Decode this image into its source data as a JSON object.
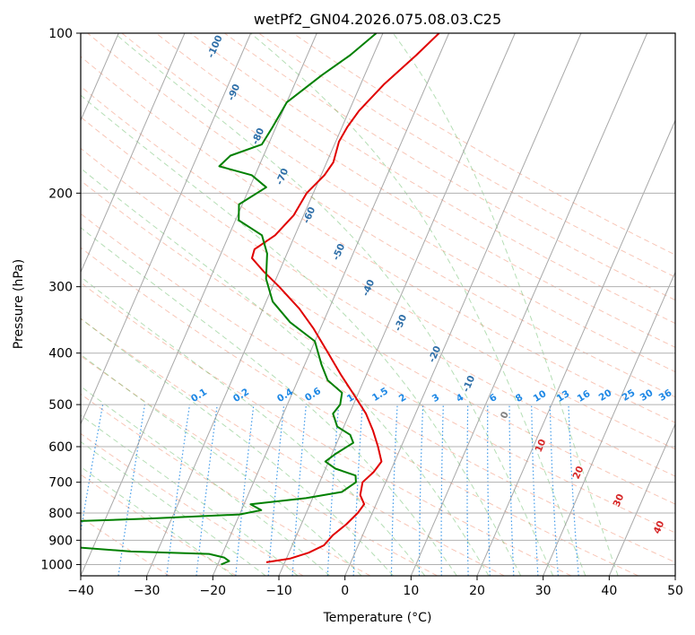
{
  "chart_data": {
    "type": "line",
    "title": "wetPf2_GN04.2026.075.08.03.C25",
    "xlabel": "Temperature (°C)",
    "ylabel": "Pressure (hPa)",
    "xlim": [
      -40,
      50
    ],
    "ylim": [
      1050,
      100
    ],
    "y_scale": "log",
    "grid": true,
    "x_ticks": [
      "−40",
      "−30",
      "−20",
      "−10",
      "0",
      "10",
      "20",
      "30",
      "40",
      "50"
    ],
    "x_tick_values": [
      -40,
      -30,
      -20,
      -10,
      0,
      10,
      20,
      30,
      40,
      50
    ],
    "y_ticks": [
      "100",
      "200",
      "300",
      "400",
      "500",
      "600",
      "700",
      "800",
      "900",
      "1000"
    ],
    "y_tick_values": [
      100,
      200,
      300,
      400,
      500,
      600,
      700,
      800,
      900,
      1000
    ],
    "skew_per_decade_degC": 35,
    "isotherm_labels": [
      "-100",
      "-90",
      "-80",
      "-70",
      "-60",
      "-50",
      "-40",
      "-30",
      "-20",
      "-10",
      "0",
      "10",
      "20",
      "30",
      "40"
    ],
    "isotherm_label_values": [
      -100,
      -90,
      -80,
      -70,
      -60,
      -50,
      -40,
      -30,
      -20,
      -10,
      0,
      10,
      20,
      30,
      40
    ],
    "mixing_ratio_labels": [
      "0.1",
      "0.2",
      "0.4",
      "0.6",
      "1",
      "1.5",
      "2",
      "3",
      "4",
      "6",
      "8",
      "10",
      "13",
      "16",
      "20",
      "25",
      "30",
      "36"
    ],
    "mixing_ratio_values": [
      0.1,
      0.2,
      0.4,
      0.6,
      1,
      1.5,
      2,
      3,
      4,
      6,
      8,
      10,
      13,
      16,
      20,
      25,
      30,
      36
    ],
    "series": [
      {
        "color": "#e00000",
        "points": [
          {
            "p": 990,
            "t": -12.8
          },
          {
            "p": 975,
            "t": -9.5
          },
          {
            "p": 950,
            "t": -7.0
          },
          {
            "p": 920,
            "t": -5.2
          },
          {
            "p": 880,
            "t": -4.5
          },
          {
            "p": 840,
            "t": -3.2
          },
          {
            "p": 800,
            "t": -2.2
          },
          {
            "p": 770,
            "t": -1.8
          },
          {
            "p": 740,
            "t": -3.0
          },
          {
            "p": 700,
            "t": -3.5
          },
          {
            "p": 670,
            "t": -2.5
          },
          {
            "p": 640,
            "t": -2.0
          },
          {
            "p": 600,
            "t": -3.5
          },
          {
            "p": 560,
            "t": -5.3
          },
          {
            "p": 520,
            "t": -7.5
          },
          {
            "p": 480,
            "t": -10.5
          },
          {
            "p": 440,
            "t": -13.8
          },
          {
            "p": 400,
            "t": -17.2
          },
          {
            "p": 360,
            "t": -21.0
          },
          {
            "p": 330,
            "t": -24.5
          },
          {
            "p": 300,
            "t": -29.0
          },
          {
            "p": 280,
            "t": -32.5
          },
          {
            "p": 265,
            "t": -35.0
          },
          {
            "p": 255,
            "t": -35.2
          },
          {
            "p": 240,
            "t": -33.0
          },
          {
            "p": 220,
            "t": -31.5
          },
          {
            "p": 200,
            "t": -31.0
          },
          {
            "p": 185,
            "t": -29.5
          },
          {
            "p": 175,
            "t": -29.0
          },
          {
            "p": 160,
            "t": -29.5
          },
          {
            "p": 150,
            "t": -29.2
          },
          {
            "p": 140,
            "t": -28.5
          },
          {
            "p": 125,
            "t": -26.5
          },
          {
            "p": 110,
            "t": -23.5
          },
          {
            "p": 100,
            "t": -21.5
          }
        ]
      },
      {
        "color": "#008000",
        "points": [
          {
            "p": 1000,
            "t": -19.5
          },
          {
            "p": 985,
            "t": -18.5
          },
          {
            "p": 970,
            "t": -19.5
          },
          {
            "p": 955,
            "t": -22.0
          },
          {
            "p": 945,
            "t": -34.0
          },
          {
            "p": 925,
            "t": -44.0
          },
          {
            "p": 900,
            "t": -55.0
          },
          {
            "p": 890,
            "t": -60.0
          },
          {
            "p": 870,
            "t": -62.0
          },
          {
            "p": 840,
            "t": -58.0
          },
          {
            "p": 820,
            "t": -34.0
          },
          {
            "p": 805,
            "t": -20.0
          },
          {
            "p": 790,
            "t": -17.0
          },
          {
            "p": 770,
            "t": -19.0
          },
          {
            "p": 750,
            "t": -11.0
          },
          {
            "p": 730,
            "t": -6.0
          },
          {
            "p": 700,
            "t": -4.5
          },
          {
            "p": 680,
            "t": -5.0
          },
          {
            "p": 660,
            "t": -8.5
          },
          {
            "p": 640,
            "t": -10.5
          },
          {
            "p": 620,
            "t": -9.5
          },
          {
            "p": 590,
            "t": -7.5
          },
          {
            "p": 570,
            "t": -8.5
          },
          {
            "p": 550,
            "t": -11.0
          },
          {
            "p": 520,
            "t": -12.5
          },
          {
            "p": 500,
            "t": -12.0
          },
          {
            "p": 475,
            "t": -12.5
          },
          {
            "p": 450,
            "t": -15.5
          },
          {
            "p": 420,
            "t": -17.5
          },
          {
            "p": 380,
            "t": -20.0
          },
          {
            "p": 350,
            "t": -25.0
          },
          {
            "p": 320,
            "t": -29.0
          },
          {
            "p": 290,
            "t": -31.5
          },
          {
            "p": 260,
            "t": -33.0
          },
          {
            "p": 240,
            "t": -35.0
          },
          {
            "p": 225,
            "t": -39.5
          },
          {
            "p": 210,
            "t": -40.5
          },
          {
            "p": 195,
            "t": -37.5
          },
          {
            "p": 185,
            "t": -40.5
          },
          {
            "p": 178,
            "t": -46.0
          },
          {
            "p": 170,
            "t": -45.0
          },
          {
            "p": 162,
            "t": -41.0
          },
          {
            "p": 150,
            "t": -40.5
          },
          {
            "p": 135,
            "t": -40.0
          },
          {
            "p": 120,
            "t": -36.5
          },
          {
            "p": 110,
            "t": -33.5
          },
          {
            "p": 100,
            "t": -31.0
          }
        ]
      }
    ]
  }
}
